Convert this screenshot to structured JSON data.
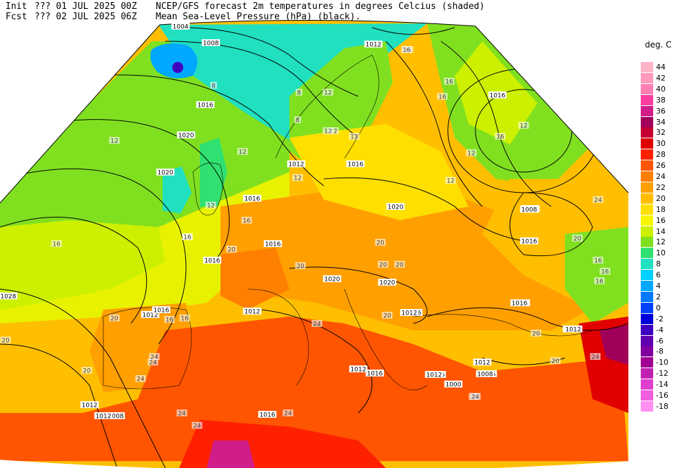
{
  "header": {
    "init_label": "Init",
    "init_value": "??? 01 JUL 2025 00Z",
    "fcst_label": "Fcst",
    "fcst_value": "??? 02 JUL 2025 06Z",
    "line1": "NCEP/GFS forecast 2m temperatures in degrees Celcius (shaded)",
    "line2": "Mean Sea-Level Pressure (hPa) (black)."
  },
  "legend": {
    "unit": "deg. C",
    "entries": [
      {
        "value": "44",
        "color": "#ffb3c6"
      },
      {
        "value": "42",
        "color": "#ff99bb"
      },
      {
        "value": "40",
        "color": "#ff7fb2"
      },
      {
        "value": "38",
        "color": "#ff3fa0"
      },
      {
        "value": "36",
        "color": "#d11d8a"
      },
      {
        "value": "34",
        "color": "#a0005a"
      },
      {
        "value": "32",
        "color": "#c40033"
      },
      {
        "value": "30",
        "color": "#e00000"
      },
      {
        "value": "28",
        "color": "#ff2000"
      },
      {
        "value": "26",
        "color": "#ff5500"
      },
      {
        "value": "24",
        "color": "#ff7f00"
      },
      {
        "value": "22",
        "color": "#ff9f00"
      },
      {
        "value": "20",
        "color": "#ffbf00"
      },
      {
        "value": "18",
        "color": "#ffdf00"
      },
      {
        "value": "16",
        "color": "#f7f700"
      },
      {
        "value": "14",
        "color": "#ccf000"
      },
      {
        "value": "12",
        "color": "#80e020"
      },
      {
        "value": "10",
        "color": "#30e070"
      },
      {
        "value": "8",
        "color": "#20e0c0"
      },
      {
        "value": "6",
        "color": "#00d0ff"
      },
      {
        "value": "4",
        "color": "#00a8ff"
      },
      {
        "value": "2",
        "color": "#0078ff"
      },
      {
        "value": "0",
        "color": "#0040ff"
      },
      {
        "value": "-2",
        "color": "#0000d8"
      },
      {
        "value": "-4",
        "color": "#4000c0"
      },
      {
        "value": "-6",
        "color": "#6000b0"
      },
      {
        "value": "-8",
        "color": "#8000a0"
      },
      {
        "value": "-10",
        "color": "#a00090"
      },
      {
        "value": "-12",
        "color": "#c020b0"
      },
      {
        "value": "-14",
        "color": "#e040d0"
      },
      {
        "value": "-16",
        "color": "#f060e0"
      },
      {
        "value": "-18",
        "color": "#ff90f0"
      }
    ]
  },
  "isobar_labels": [
    "1004",
    "1008",
    "1012",
    "1016",
    "1020",
    "1028",
    "1020",
    "1016",
    "1012",
    "1016",
    "1016",
    "1016",
    "1012",
    "1020",
    "1020",
    "1020",
    "1016",
    "1016",
    "1012",
    "1012",
    "1008",
    "1012",
    "1016",
    "1016",
    "1012",
    "1016",
    "1020",
    "1020",
    "1016",
    "1016",
    "1016",
    "1016",
    "1012",
    "1000",
    "1008",
    "1012",
    "1012",
    "1016",
    "1008",
    "1012"
  ],
  "temp_labels": [
    "8",
    "12",
    "12",
    "12",
    "16",
    "16",
    "12",
    "12",
    "12",
    "16",
    "16",
    "16",
    "20",
    "20",
    "20",
    "20",
    "20",
    "24",
    "24",
    "24",
    "24",
    "24",
    "20",
    "20",
    "24",
    "24",
    "12",
    "12",
    "16",
    "16",
    "16",
    "12",
    "12",
    "16",
    "20",
    "24",
    "20",
    "20",
    "24",
    "16",
    "16",
    "24",
    "8",
    "8",
    "16",
    "12",
    "20",
    "16",
    "16",
    "20",
    "24"
  ]
}
